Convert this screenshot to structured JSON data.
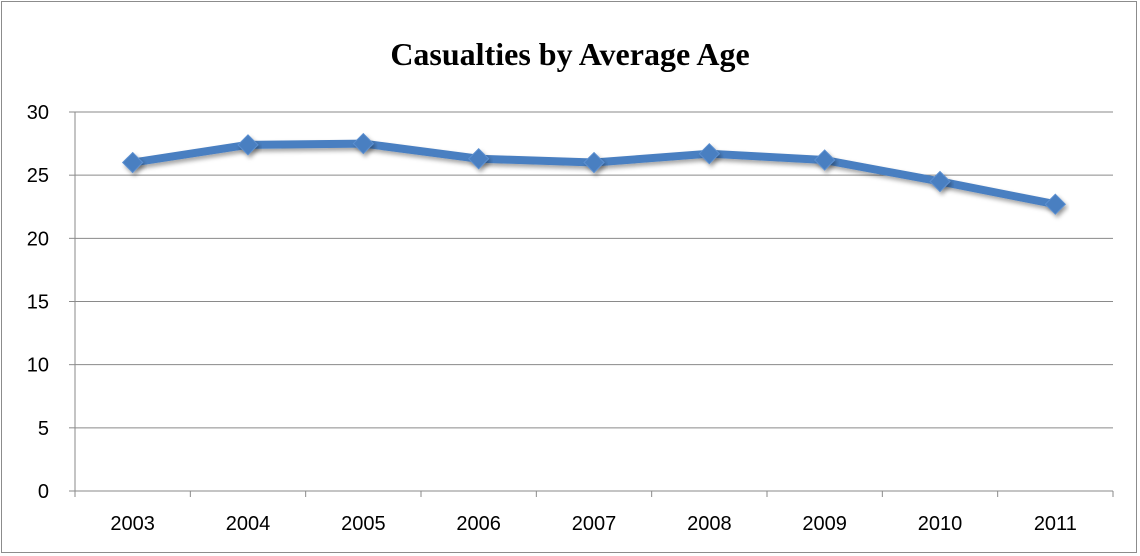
{
  "chart_data": {
    "type": "line",
    "title": "Casualties by Average Age",
    "categories": [
      "2003",
      "2004",
      "2005",
      "2006",
      "2007",
      "2008",
      "2009",
      "2010",
      "2011"
    ],
    "series": [
      {
        "values": [
          26.0,
          27.4,
          27.5,
          26.3,
          26.0,
          26.7,
          26.2,
          24.5,
          22.7
        ]
      }
    ],
    "y_ticks": [
      "0",
      "5",
      "10",
      "15",
      "20",
      "25",
      "30"
    ],
    "ylim": [
      0,
      30
    ],
    "grid": true,
    "legend": "none",
    "line_color": "#4a7fc1"
  }
}
